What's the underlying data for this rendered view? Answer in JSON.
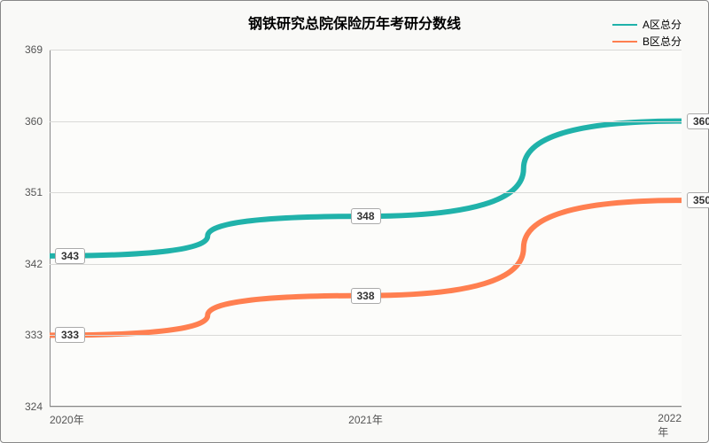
{
  "chart": {
    "type": "line",
    "title": "钢铁研究总院保险历年考研分数线",
    "title_fontsize": 16,
    "background_color": "#f9f9f7",
    "plot_background": "#fcfcfa",
    "grid_color": "#d9d9d7",
    "axis_color": "#888888",
    "text_color": "#555555",
    "label_fontsize": 12,
    "x": {
      "categories": [
        "2020年",
        "2021年",
        "2022年"
      ],
      "positions_pct": [
        0,
        50,
        100
      ]
    },
    "y": {
      "lim": [
        324,
        369
      ],
      "ticks": [
        324,
        333,
        342,
        351,
        360,
        369
      ]
    },
    "series": [
      {
        "name": "A区总分",
        "color": "#20b2aa",
        "line_width": 2,
        "values": [
          343,
          348,
          360
        ],
        "x_pct": [
          0,
          50,
          100
        ],
        "label_align": [
          "right",
          "center",
          "right"
        ]
      },
      {
        "name": "B区总分",
        "color": "#ff7f50",
        "line_width": 2,
        "values": [
          333,
          338,
          350
        ],
        "x_pct": [
          0,
          50,
          100
        ],
        "label_align": [
          "right",
          "center",
          "right"
        ]
      }
    ],
    "legend": {
      "position": "top-right",
      "fontsize": 12
    }
  }
}
